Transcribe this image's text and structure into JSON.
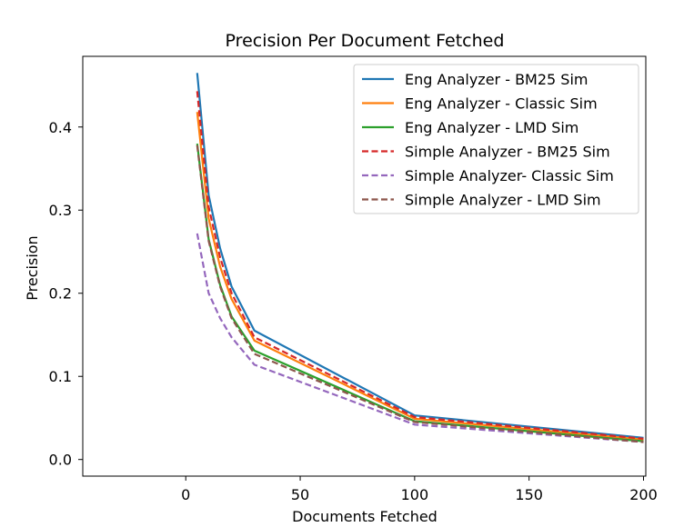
{
  "chart_data": {
    "type": "line",
    "title": "Precision Per Document Fetched",
    "xlabel": "Documents Fetched",
    "ylabel": "Precision",
    "xlim": [
      -45,
      201
    ],
    "ylim": [
      -0.02,
      0.485
    ],
    "xticks": [
      0,
      50,
      100,
      150,
      200
    ],
    "yticks": [
      0.0,
      0.1,
      0.2,
      0.3,
      0.4
    ],
    "xtick_labels": [
      "0",
      "50",
      "100",
      "150",
      "200"
    ],
    "ytick_labels": [
      "0.0",
      "0.1",
      "0.2",
      "0.3",
      "0.4"
    ],
    "legend_position": "top-right",
    "grid": false,
    "x": [
      5,
      10,
      15,
      20,
      30,
      100,
      200
    ],
    "series": [
      {
        "name": "Eng Analyzer - BM25 Sim",
        "color": "#1f77b4",
        "dash": "solid",
        "values": [
          0.465,
          0.318,
          0.254,
          0.208,
          0.155,
          0.053,
          0.026
        ]
      },
      {
        "name": "Eng Analyzer - Classic Sim",
        "color": "#ff7f0e",
        "dash": "solid",
        "values": [
          0.418,
          0.29,
          0.232,
          0.193,
          0.143,
          0.049,
          0.024
        ]
      },
      {
        "name": "Eng Analyzer - LMD Sim",
        "color": "#2ca02c",
        "dash": "solid",
        "values": [
          0.38,
          0.265,
          0.21,
          0.172,
          0.131,
          0.046,
          0.022
        ]
      },
      {
        "name": "Simple Analyzer - BM25 Sim",
        "color": "#d62728",
        "dash": "dashed",
        "values": [
          0.443,
          0.304,
          0.243,
          0.2,
          0.147,
          0.051,
          0.025
        ]
      },
      {
        "name": "Simple Analyzer- Classic Sim",
        "color": "#9467bd",
        "dash": "dashed",
        "values": [
          0.272,
          0.2,
          0.17,
          0.147,
          0.114,
          0.042,
          0.021
        ]
      },
      {
        "name": "Simple Analyzer - LMD Sim",
        "color": "#8c564b",
        "dash": "dashed",
        "values": [
          0.378,
          0.263,
          0.208,
          0.17,
          0.127,
          0.045,
          0.021
        ]
      }
    ]
  }
}
